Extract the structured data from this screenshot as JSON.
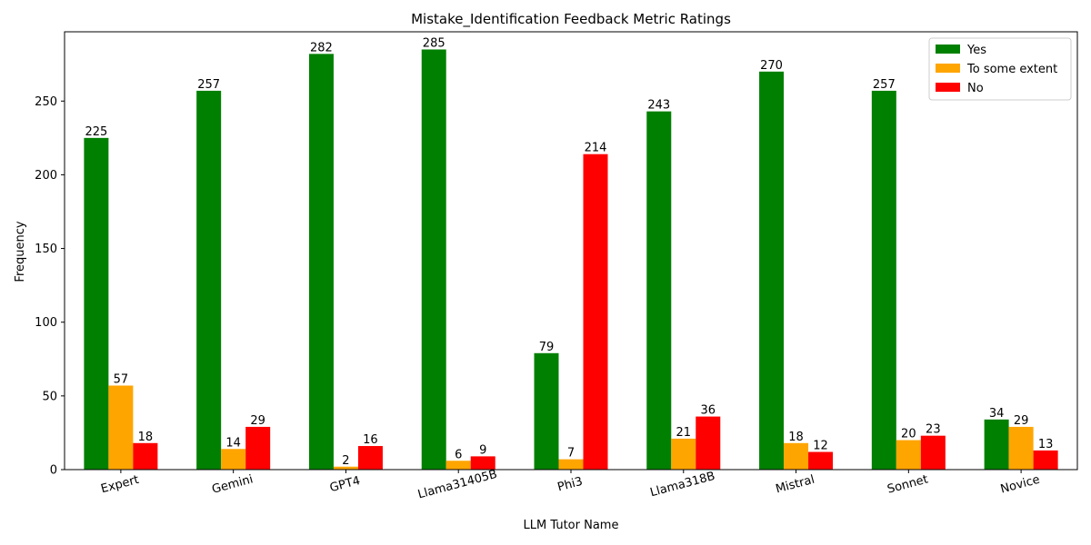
{
  "chart_data": {
    "type": "bar",
    "title": "Mistake_Identification Feedback Metric Ratings",
    "xlabel": "LLM Tutor Name",
    "ylabel": "Frequency",
    "ylim": [
      0,
      297
    ],
    "yticks": [
      0,
      50,
      100,
      150,
      200,
      250
    ],
    "grid": false,
    "legend_position": "top-right",
    "categories": [
      "Expert",
      "Gemini",
      "GPT4",
      "Llama31405B",
      "Phi3",
      "Llama318B",
      "Mistral",
      "Sonnet",
      "Novice"
    ],
    "series": [
      {
        "name": "Yes",
        "color": "#008000",
        "values": [
          225,
          257,
          282,
          285,
          79,
          243,
          270,
          257,
          34
        ]
      },
      {
        "name": "To some extent",
        "color": "#ffa500",
        "values": [
          57,
          14,
          2,
          6,
          7,
          21,
          18,
          20,
          29
        ]
      },
      {
        "name": "No",
        "color": "#ff0000",
        "values": [
          18,
          29,
          16,
          9,
          214,
          36,
          12,
          23,
          13
        ]
      }
    ]
  }
}
